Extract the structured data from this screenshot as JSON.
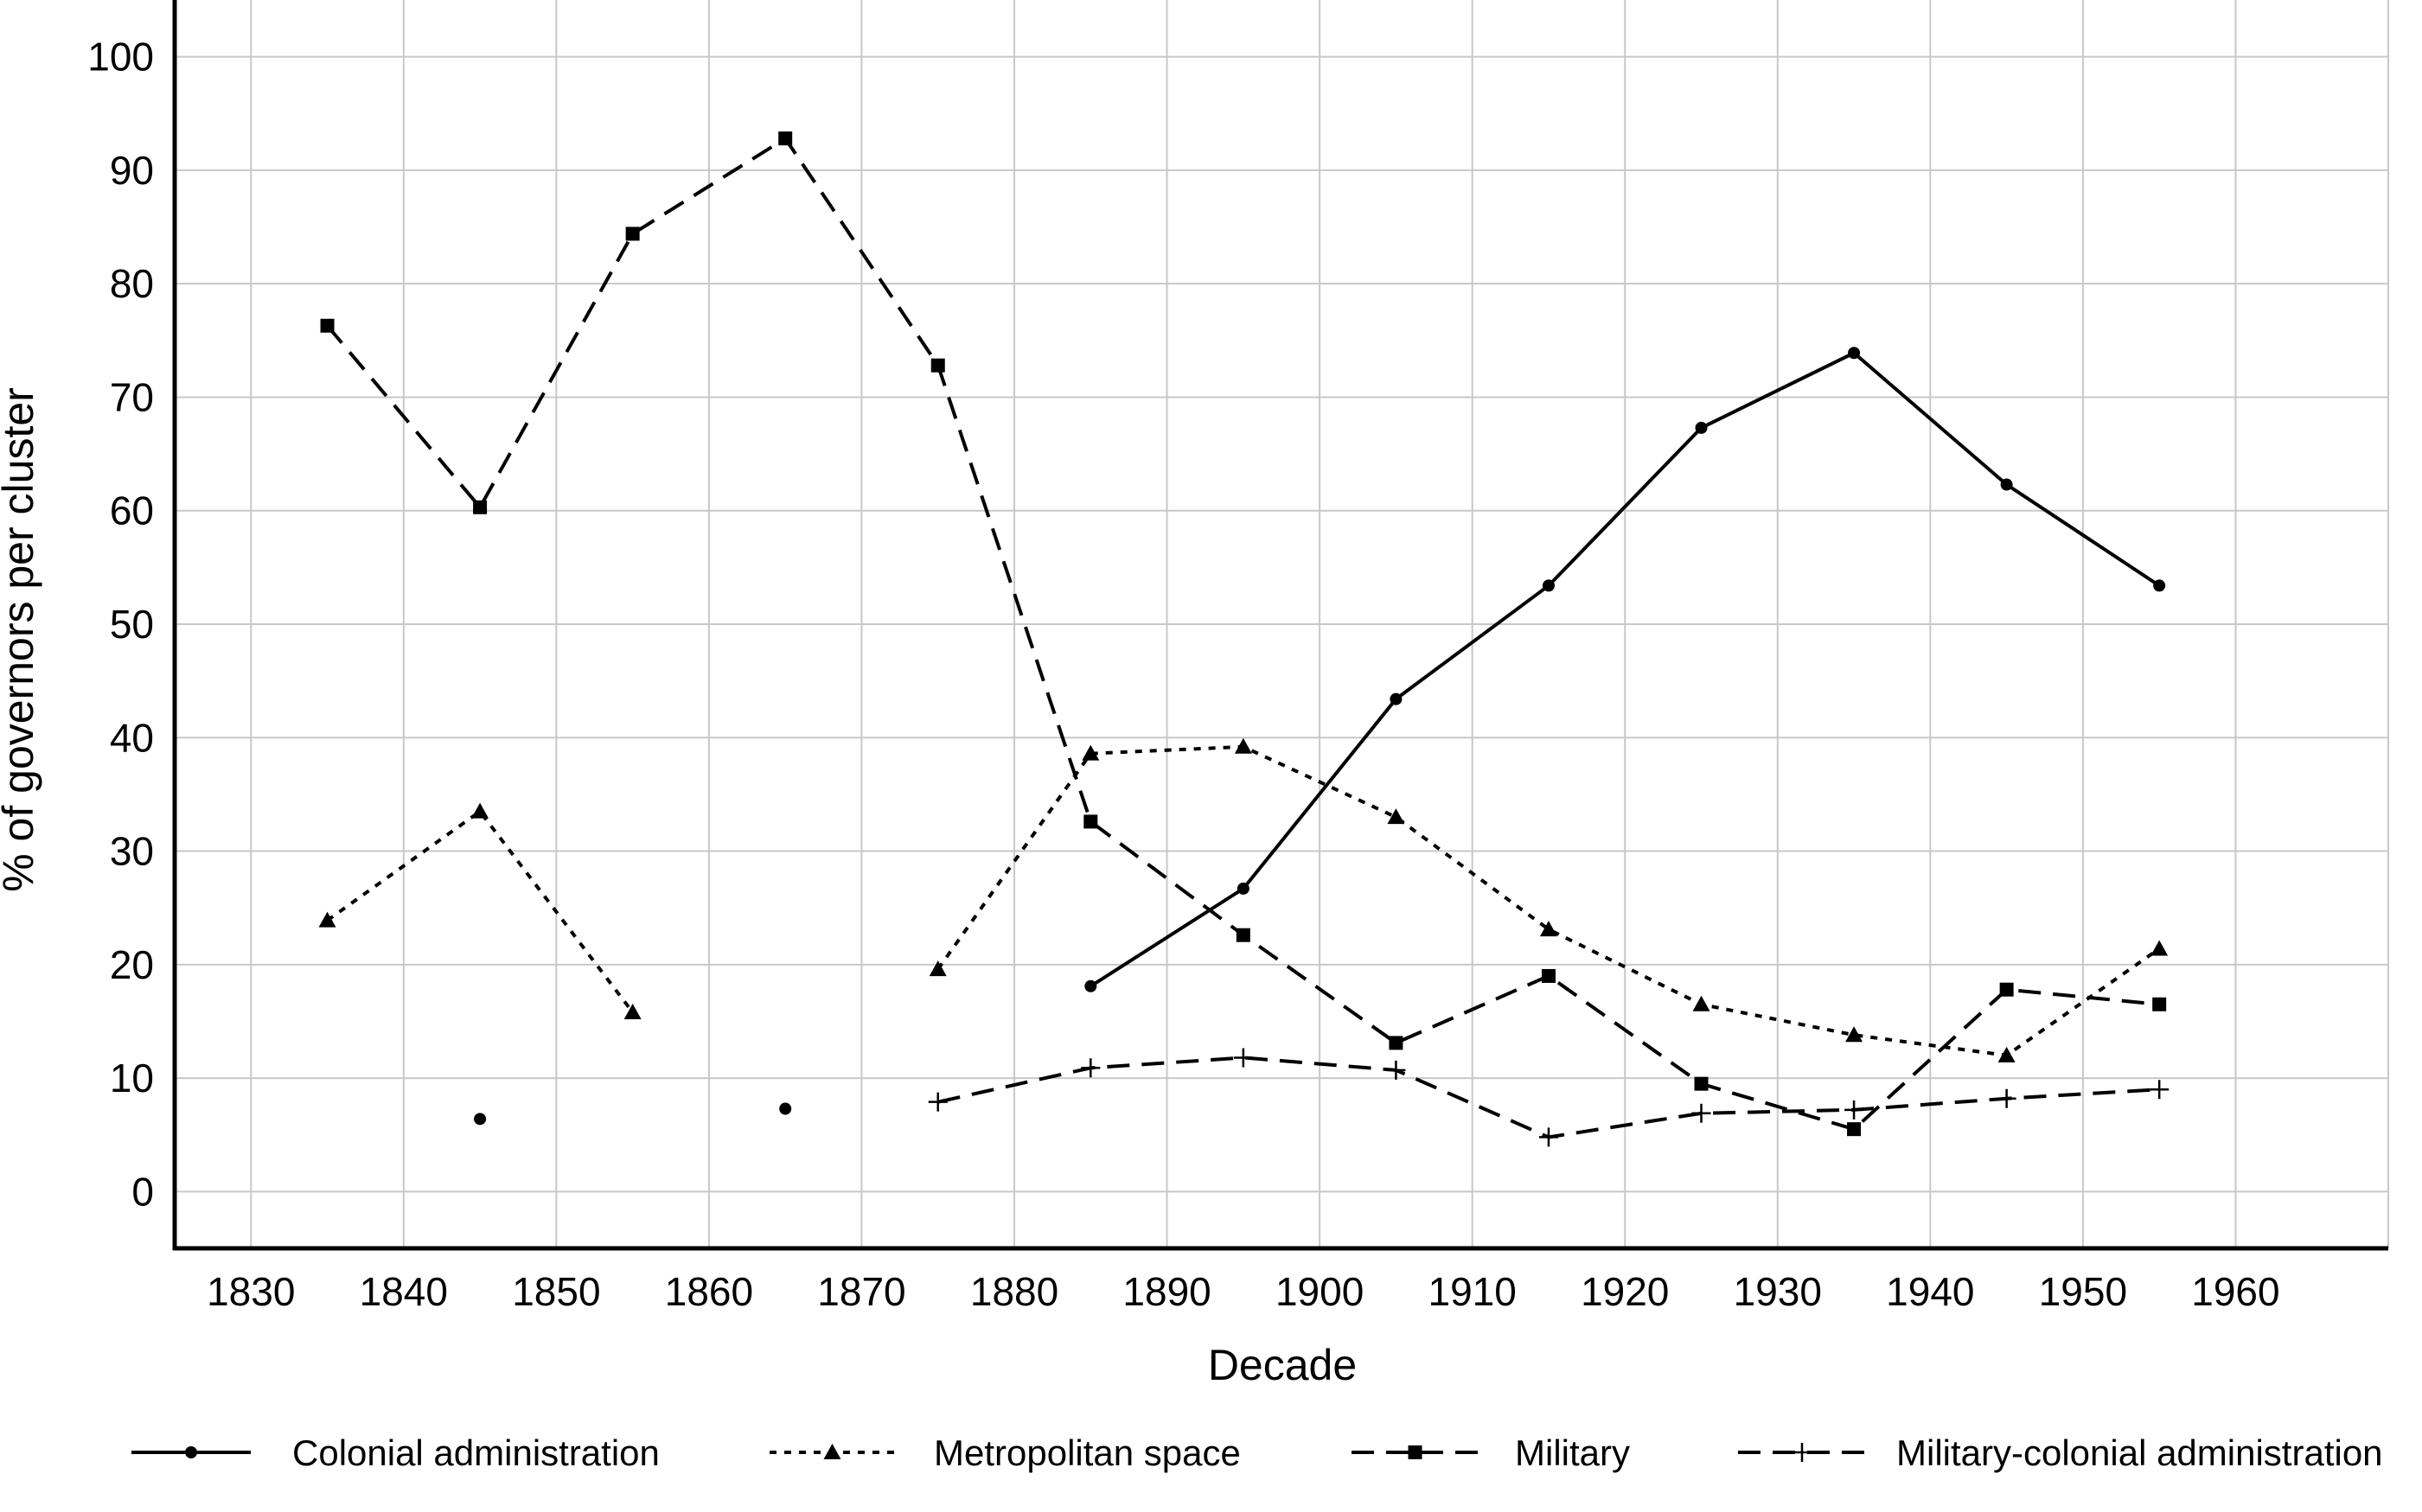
{
  "chart_data": {
    "type": "line",
    "title": "",
    "xlabel": "Decade",
    "ylabel": "% of governors per cluster",
    "xlim": [
      1825,
      1970
    ],
    "ylim": [
      -5,
      105
    ],
    "xticks": [
      1830,
      1840,
      1850,
      1860,
      1870,
      1880,
      1890,
      1900,
      1910,
      1920,
      1930,
      1940,
      1950,
      1960
    ],
    "yticks": [
      0,
      10,
      20,
      30,
      40,
      50,
      60,
      70,
      80,
      90,
      100
    ],
    "grid": true,
    "legend_position": "bottom",
    "series": [
      {
        "name": "Colonial administration",
        "style": "solid",
        "marker": "circle",
        "points": [
          [
            1845,
            6.4
          ],
          [
            1865,
            7.3
          ],
          [
            1885,
            18.1
          ],
          [
            1895,
            26.7
          ],
          [
            1905,
            43.4
          ],
          [
            1915,
            53.4
          ],
          [
            1925,
            67.3
          ],
          [
            1935,
            73.9
          ],
          [
            1945,
            62.3
          ],
          [
            1955,
            53.4
          ]
        ]
      },
      {
        "name": "Metropolitan space",
        "style": "dotted",
        "marker": "triangle",
        "points": [
          [
            1835,
            23.9
          ],
          [
            1845,
            33.5
          ],
          [
            1855,
            15.8
          ],
          [
            1875,
            19.6
          ],
          [
            1885,
            38.6
          ],
          [
            1895,
            39.2
          ],
          [
            1905,
            33.0
          ],
          [
            1915,
            23.1
          ],
          [
            1925,
            16.5
          ],
          [
            1935,
            13.8
          ],
          [
            1945,
            12.0
          ],
          [
            1955,
            21.4
          ]
        ]
      },
      {
        "name": "Military",
        "style": "dashed",
        "marker": "square",
        "points": [
          [
            1835,
            76.3
          ],
          [
            1845,
            60.3
          ],
          [
            1855,
            84.4
          ],
          [
            1865,
            92.8
          ],
          [
            1875,
            72.8
          ],
          [
            1885,
            32.6
          ],
          [
            1895,
            22.6
          ],
          [
            1905,
            13.1
          ],
          [
            1915,
            19.0
          ],
          [
            1925,
            9.5
          ],
          [
            1935,
            5.5
          ],
          [
            1945,
            17.8
          ],
          [
            1955,
            16.5
          ]
        ]
      },
      {
        "name": "Military-colonial administration",
        "style": "dashed",
        "marker": "plus",
        "points": [
          [
            1875,
            7.9
          ],
          [
            1885,
            10.9
          ],
          [
            1895,
            11.8
          ],
          [
            1905,
            10.7
          ],
          [
            1915,
            4.8
          ],
          [
            1925,
            6.9
          ],
          [
            1935,
            7.2
          ],
          [
            1945,
            8.2
          ],
          [
            1955,
            9.0
          ]
        ]
      }
    ]
  }
}
